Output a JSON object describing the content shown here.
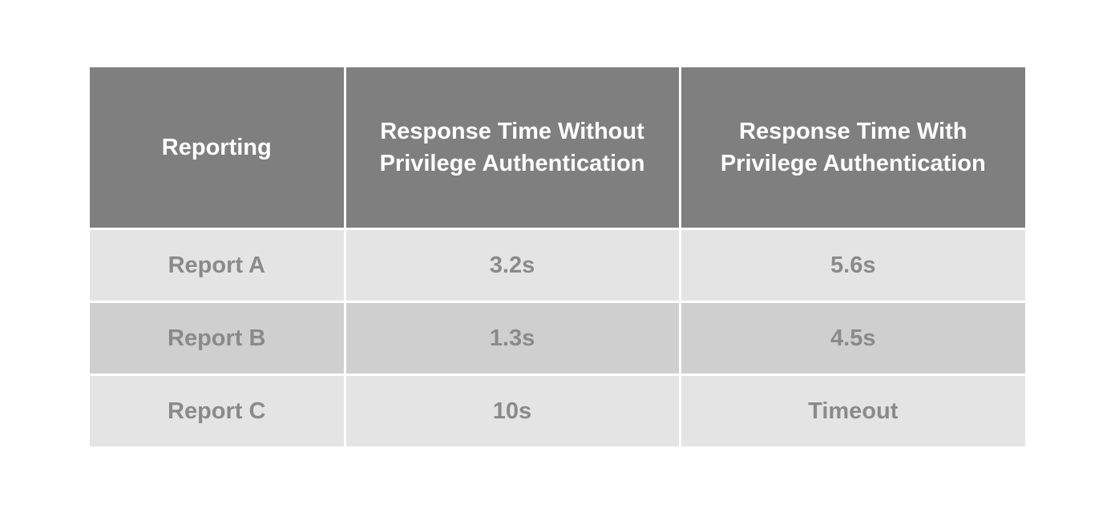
{
  "chart_data": {
    "type": "table",
    "title": "",
    "columns": [
      "Reporting",
      "Response Time Without Privilege Authentication",
      "Response Time With Privilege Authentication"
    ],
    "rows": [
      [
        "Report A",
        "3.2s",
        "5.6s"
      ],
      [
        "Report B",
        "1.3s",
        "4.5s"
      ],
      [
        "Report C",
        "10s",
        "Timeout"
      ]
    ]
  },
  "colors": {
    "header_bg": "#7f7f7f",
    "header_text": "#ffffff",
    "row_light_bg": "#e5e4e5",
    "row_dark_bg": "#d0cfd0",
    "cell_text": "#8b8a8b",
    "gutter": "#ffffff",
    "page_bg": "#ffffff"
  }
}
